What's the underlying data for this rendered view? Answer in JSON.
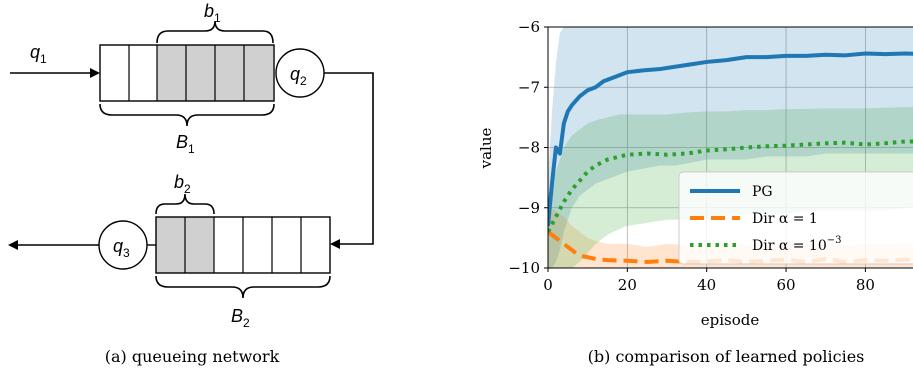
{
  "panel_a": {
    "caption": "(a) queueing network",
    "labels": {
      "q1": "q",
      "q1_sub": "1",
      "q2": "q",
      "q2_sub": "2",
      "q3": "q",
      "q3_sub": "3",
      "b1": "b",
      "b1_sub": "1",
      "B1": "B",
      "B1_sub": "1",
      "b2": "b",
      "b2_sub": "2",
      "B2": "B",
      "B2_sub": "2"
    }
  },
  "panel_b": {
    "caption": "(b) comparison of learned policies"
  },
  "chart_data": {
    "type": "line",
    "xlabel": "episode",
    "ylabel": "value",
    "xlim": [
      0,
      100
    ],
    "ylim": [
      -10,
      -6
    ],
    "xticks": [
      0,
      20,
      40,
      60,
      80
    ],
    "xtick_labels": [
      "0",
      "20",
      "40",
      "60",
      "80"
    ],
    "yticks": [
      -10,
      -9,
      -8,
      -7,
      -6
    ],
    "ytick_labels": [
      "−10",
      "−9",
      "−8",
      "−7",
      "−6"
    ],
    "grid": true,
    "legend_position": "center-right",
    "series": [
      {
        "name": "PG",
        "legend_label": "PG",
        "color": "#1f77b4",
        "style": "solid",
        "x": [
          0,
          1,
          2,
          3,
          4,
          5,
          6,
          8,
          10,
          12,
          14,
          16,
          18,
          20,
          24,
          28,
          32,
          36,
          40,
          45,
          50,
          55,
          60,
          65,
          70,
          75,
          80,
          85,
          90,
          95,
          100
        ],
        "y": [
          -9.3,
          -8.6,
          -8.0,
          -8.1,
          -7.6,
          -7.4,
          -7.3,
          -7.15,
          -7.05,
          -7.0,
          -6.9,
          -6.85,
          -6.8,
          -6.75,
          -6.72,
          -6.7,
          -6.66,
          -6.62,
          -6.58,
          -6.55,
          -6.5,
          -6.5,
          -6.48,
          -6.48,
          -6.46,
          -6.47,
          -6.44,
          -6.45,
          -6.44,
          -6.45,
          -6.45
        ],
        "band_low": [
          -10,
          -10,
          -9.9,
          -9.7,
          -9.4,
          -9.2,
          -9.0,
          -8.8,
          -8.7,
          -8.6,
          -8.55,
          -8.5,
          -8.45,
          -8.4,
          -8.35,
          -8.3,
          -8.3,
          -8.25,
          -8.2,
          -8.2,
          -8.2,
          -8.15,
          -8.15,
          -8.15,
          -8.1,
          -8.1,
          -8.1,
          -8.1,
          -8.1,
          -8.1,
          -8.1
        ],
        "band_high": [
          -8.6,
          -7.4,
          -6.6,
          -6.1,
          -6.0,
          -5.9,
          -5.9,
          -5.9,
          -5.9,
          -5.9,
          -5.9,
          -5.9,
          -5.9,
          -5.9,
          -5.9,
          -5.9,
          -5.9,
          -5.9,
          -5.9,
          -5.9,
          -5.9,
          -5.9,
          -5.9,
          -5.9,
          -5.9,
          -5.9,
          -5.9,
          -5.9,
          -5.9,
          -5.9,
          -5.9
        ]
      },
      {
        "name": "Dir α = 1",
        "legend_label": "Dir α = 1",
        "color": "#ff7f0e",
        "style": "dashed",
        "x": [
          0,
          2,
          4,
          6,
          8,
          10,
          12,
          15,
          20,
          25,
          30,
          35,
          40,
          45,
          50,
          55,
          60,
          65,
          70,
          75,
          80,
          85,
          90,
          95,
          100
        ],
        "y": [
          -9.4,
          -9.5,
          -9.6,
          -9.7,
          -9.8,
          -9.82,
          -9.85,
          -9.87,
          -9.88,
          -9.9,
          -9.88,
          -9.9,
          -9.89,
          -9.87,
          -9.9,
          -9.88,
          -9.86,
          -9.9,
          -9.85,
          -9.9,
          -9.87,
          -9.88,
          -9.86,
          -9.89,
          -9.88
        ],
        "band_low": [
          -10,
          -10,
          -10,
          -10,
          -10,
          -10,
          -10,
          -10,
          -10,
          -10,
          -10,
          -10,
          -10,
          -10,
          -10,
          -10,
          -10,
          -10,
          -10,
          -10,
          -10,
          -10,
          -10,
          -10,
          -10
        ],
        "band_high": [
          -9.0,
          -9.05,
          -9.15,
          -9.3,
          -9.4,
          -9.5,
          -9.55,
          -9.6,
          -9.6,
          -9.65,
          -9.6,
          -9.62,
          -9.6,
          -9.58,
          -9.62,
          -9.6,
          -9.58,
          -9.62,
          -9.6,
          -9.62,
          -9.6,
          -9.6,
          -9.58,
          -9.62,
          -9.6
        ]
      },
      {
        "name": "Dir α = 10^-3",
        "legend_label": "Dir α = 10",
        "legend_exponent": "−3",
        "color": "#2ca02c",
        "style": "dotted",
        "x": [
          0,
          2,
          4,
          6,
          8,
          10,
          12,
          15,
          18,
          20,
          25,
          30,
          35,
          40,
          45,
          50,
          55,
          60,
          65,
          70,
          75,
          80,
          85,
          90,
          95,
          100
        ],
        "y": [
          -9.4,
          -9.15,
          -8.9,
          -8.7,
          -8.55,
          -8.4,
          -8.3,
          -8.2,
          -8.15,
          -8.12,
          -8.1,
          -8.12,
          -8.1,
          -8.05,
          -8.03,
          -8.0,
          -7.98,
          -7.97,
          -7.95,
          -7.93,
          -7.92,
          -7.95,
          -7.93,
          -7.9,
          -7.9,
          -7.9
        ],
        "band_low": [
          -10,
          -10,
          -10,
          -10,
          -9.9,
          -9.75,
          -9.6,
          -9.45,
          -9.35,
          -9.3,
          -9.25,
          -9.2,
          -9.2,
          -9.15,
          -9.15,
          -9.1,
          -9.1,
          -9.1,
          -9.05,
          -9.05,
          -9.05,
          -9.05,
          -9.05,
          -9.0,
          -9.0,
          -9.0
        ],
        "band_high": [
          -8.8,
          -8.4,
          -8.0,
          -7.8,
          -7.7,
          -7.6,
          -7.55,
          -7.5,
          -7.45,
          -7.45,
          -7.45,
          -7.45,
          -7.42,
          -7.4,
          -7.4,
          -7.38,
          -7.38,
          -7.36,
          -7.36,
          -7.35,
          -7.35,
          -7.35,
          -7.34,
          -7.33,
          -7.33,
          -7.33
        ]
      }
    ]
  }
}
